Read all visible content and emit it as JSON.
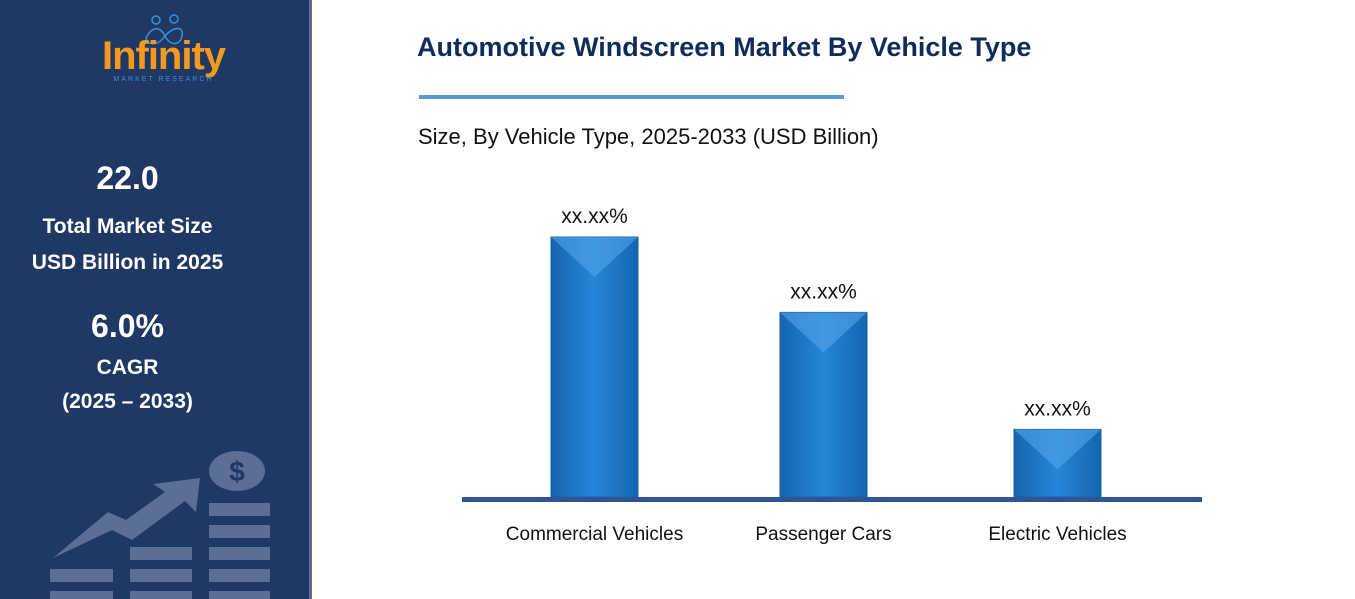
{
  "sidebar": {
    "logo": {
      "name": "Infinity",
      "tagline": "MARKET RESEARCH"
    },
    "market_size": {
      "value": "22.0",
      "label_line1": "Total Market Size",
      "label_line2": "USD Billion in 2025"
    },
    "cagr": {
      "value": "6.0%",
      "label": "CAGR",
      "period": "(2025 – 2033)"
    },
    "decor_icon": "growth-chart-dollar-icon"
  },
  "header": {
    "title": "Automotive Windscreen Market By Vehicle Type",
    "subtitle": "Size, By Vehicle Type, 2025-2033 (USD Billion)"
  },
  "chart_data": {
    "type": "bar",
    "title": "Automotive Windscreen Market By Vehicle Type",
    "subtitle": "Size, By Vehicle Type, 2025-2033 (USD Billion)",
    "categories": [
      "Commercial Vehicles",
      "Passenger Cars",
      "Electric Vehicles"
    ],
    "values": [
      100,
      71,
      26
    ],
    "data_labels": [
      "xx.xx%",
      "xx.xx%",
      "xx.xx%"
    ],
    "ylim": [
      0,
      100
    ],
    "grid": false,
    "bar_color": "#1f7fd0",
    "axis_color": "#2f5597"
  }
}
